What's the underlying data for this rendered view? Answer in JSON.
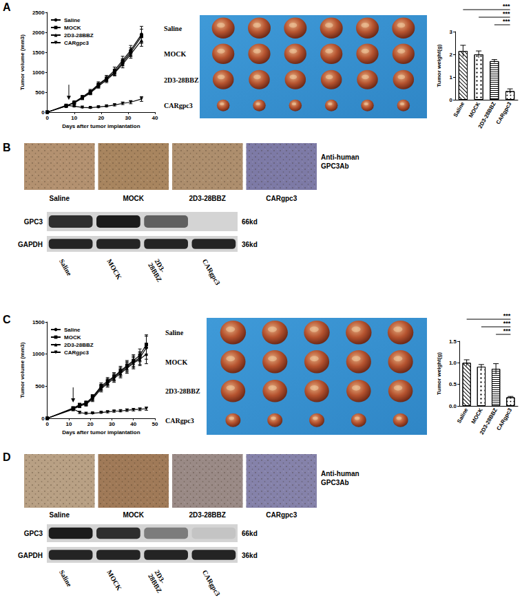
{
  "chart_data": [
    {
      "type": "line",
      "xlabel": "Days after tumor implantation",
      "ylabel": "Tumor volume (mm3)",
      "x": [
        0,
        7,
        10,
        13,
        16,
        19,
        22,
        25,
        28,
        31,
        35
      ],
      "xlim": [
        0,
        40
      ],
      "xticks": [
        0,
        10,
        20,
        30,
        40
      ],
      "ylim": [
        0,
        2500
      ],
      "yticks": [
        0,
        500,
        1000,
        1500,
        2000,
        2500
      ],
      "legend": "top-left",
      "treatment_day": 8,
      "series": [
        {
          "name": "Saline",
          "color": "#000000",
          "marker": "circle",
          "values": [
            0,
            150,
            250,
            380,
            520,
            700,
            850,
            1050,
            1300,
            1550,
            1950
          ],
          "errors": [
            0,
            20,
            30,
            40,
            50,
            60,
            70,
            80,
            100,
            120,
            200
          ]
        },
        {
          "name": "MOCK",
          "color": "#000000",
          "marker": "square",
          "values": [
            0,
            160,
            240,
            360,
            500,
            680,
            830,
            1000,
            1250,
            1500,
            1900
          ],
          "errors": [
            0,
            20,
            25,
            35,
            45,
            55,
            65,
            80,
            90,
            110,
            180
          ]
        },
        {
          "name": "2D3-28BBZ",
          "color": "#000000",
          "marker": "triangle",
          "values": [
            0,
            150,
            230,
            350,
            480,
            650,
            800,
            980,
            1200,
            1450,
            1800
          ],
          "errors": [
            0,
            20,
            25,
            35,
            45,
            50,
            60,
            70,
            90,
            100,
            150
          ]
        },
        {
          "name": "CARgpc3",
          "color": "#000000",
          "marker": "triangle_down",
          "values": [
            0,
            170,
            150,
            120,
            110,
            130,
            150,
            180,
            220,
            250,
            330
          ],
          "errors": [
            0,
            20,
            20,
            15,
            15,
            20,
            20,
            25,
            30,
            40,
            60
          ]
        }
      ]
    },
    {
      "type": "bar",
      "ylabel": "Tumor weight(g)",
      "categories": [
        "Saline",
        "MOCK",
        "2D3-28BBZ",
        "CARgpc3"
      ],
      "values": [
        2.15,
        2.0,
        1.7,
        0.38
      ],
      "errors": [
        0.25,
        0.15,
        0.07,
        0.1
      ],
      "color": "#ffffff",
      "ylim": [
        0,
        3
      ],
      "yticks": [
        0,
        1,
        2,
        3
      ],
      "significance": [
        {
          "from": "Saline",
          "to": "CARgpc3",
          "label": "***"
        },
        {
          "from": "MOCK",
          "to": "CARgpc3",
          "label": "***"
        },
        {
          "from": "2D3-28BBZ",
          "to": "CARgpc3",
          "label": "***"
        }
      ]
    },
    {
      "type": "line",
      "xlabel": "Days after tumor implantation",
      "ylabel": "Tumor volume (mm3)",
      "x": [
        0,
        12,
        15,
        18,
        21,
        25,
        28,
        31,
        34,
        37,
        40,
        43,
        46
      ],
      "xlim": [
        0,
        50
      ],
      "xticks": [
        0,
        10,
        20,
        30,
        40,
        50
      ],
      "ylim": [
        0,
        1500
      ],
      "yticks": [
        0,
        500,
        1000,
        1500
      ],
      "legend": "top-left",
      "treatment_day": 12,
      "series": [
        {
          "name": "Saline",
          "color": "#000000",
          "marker": "circle",
          "values": [
            0,
            150,
            200,
            230,
            320,
            480,
            560,
            640,
            720,
            800,
            880,
            940,
            1100
          ],
          "errors": [
            0,
            20,
            25,
            30,
            40,
            50,
            55,
            60,
            70,
            80,
            90,
            100,
            180
          ]
        },
        {
          "name": "MOCK",
          "color": "#000000",
          "marker": "square",
          "values": [
            0,
            160,
            210,
            240,
            330,
            500,
            580,
            650,
            740,
            820,
            900,
            980,
            1150
          ],
          "errors": [
            0,
            20,
            25,
            30,
            40,
            50,
            55,
            60,
            70,
            80,
            90,
            100,
            150
          ]
        },
        {
          "name": "2D3-28BBZ",
          "color": "#000000",
          "marker": "triangle",
          "values": [
            0,
            140,
            190,
            220,
            300,
            460,
            540,
            620,
            700,
            780,
            860,
            920,
            1000
          ],
          "errors": [
            0,
            20,
            25,
            30,
            40,
            50,
            55,
            60,
            70,
            80,
            90,
            100,
            150
          ]
        },
        {
          "name": "CARgpc3",
          "color": "#000000",
          "marker": "triangle_down",
          "values": [
            0,
            150,
            90,
            75,
            80,
            90,
            100,
            110,
            115,
            125,
            135,
            140,
            150
          ],
          "errors": [
            0,
            20,
            15,
            10,
            10,
            12,
            15,
            15,
            15,
            18,
            20,
            20,
            25
          ]
        }
      ]
    },
    {
      "type": "bar",
      "ylabel": "Tumor weight(g)",
      "categories": [
        "Saline",
        "MOCK",
        "2D3-28BBZ",
        "CARgpc3"
      ],
      "values": [
        1.0,
        0.91,
        0.86,
        0.2
      ],
      "errors": [
        0.07,
        0.05,
        0.12,
        0.02
      ],
      "color": "#ffffff",
      "ylim": [
        0,
        1.5
      ],
      "yticks": [
        {
          "value": 0,
          "label": "0.0"
        },
        {
          "value": 0.5,
          "label": "0.5"
        },
        {
          "value": 1,
          "label": "1.0"
        },
        {
          "value": 1.5,
          "label": "1.5"
        }
      ],
      "significance": [
        {
          "from": "Saline",
          "to": "CARgpc3",
          "label": "***"
        },
        {
          "from": "MOCK",
          "to": "CARgpc3",
          "label": "***"
        },
        {
          "from": "2D3-28BBZ",
          "to": "CARgpc3",
          "label": "***"
        }
      ]
    }
  ],
  "figure": {
    "panels": [
      {
        "label": "A",
        "photo": {
          "rows": [
            {
              "label": "Saline",
              "count": 6
            },
            {
              "label": "MOCK",
              "count": 6
            },
            {
              "label": "2D3-28BBZ",
              "count": 6
            },
            {
              "label": "CARgpc3",
              "count": 6
            }
          ]
        }
      },
      {
        "label": "B",
        "ihc": {
          "label": "Anti-human GPC3Ab",
          "images": [
            {
              "label": "Saline",
              "color": "#b39170"
            },
            {
              "label": "MOCK",
              "color": "#a8855f"
            },
            {
              "label": "2D3-28BBZ",
              "color": "#ad8e6d"
            },
            {
              "label": "CARgpc3",
              "color": "#7d7aa6"
            }
          ]
        },
        "blot": {
          "lanes": [
            "Saline",
            "MOCK",
            "2D3-28BBZ",
            "CARgpc3"
          ],
          "bands": [
            {
              "label": "GPC3",
              "size": "66kd",
              "intensity": [
                0.85,
                0.95,
                0.6,
                0
              ]
            },
            {
              "label": "GAPDH",
              "size": "36kd",
              "intensity": [
                0.9,
                0.9,
                0.9,
                0.9
              ]
            }
          ]
        }
      },
      {
        "label": "C",
        "photo": {
          "rows": [
            {
              "label": "Saline",
              "count": 5
            },
            {
              "label": "MOCK",
              "count": 5
            },
            {
              "label": "2D3-28BBZ",
              "count": 5
            },
            {
              "label": "CARgpc3",
              "count": 5
            }
          ]
        }
      },
      {
        "label": "D",
        "ihc": {
          "label": "Anti-human GPC3Ab",
          "images": [
            {
              "label": "Saline",
              "color": "#b8a084"
            },
            {
              "label": "MOCK",
              "color": "#a07a58"
            },
            {
              "label": "2D3-28BBZ",
              "color": "#9a8a86"
            },
            {
              "label": "CARgpc3",
              "color": "#8582aa"
            }
          ]
        },
        "blot": {
          "lanes": [
            "Saline",
            "MOCK",
            "2D3-28BBZ",
            "CARgpc3"
          ],
          "bands": [
            {
              "label": "GPC3",
              "size": "66kd",
              "intensity": [
                0.95,
                0.85,
                0.45,
                0.08
              ]
            },
            {
              "label": "GAPDH",
              "size": "36kd",
              "intensity": [
                0.9,
                0.9,
                0.9,
                0.9
              ]
            }
          ]
        }
      }
    ]
  }
}
